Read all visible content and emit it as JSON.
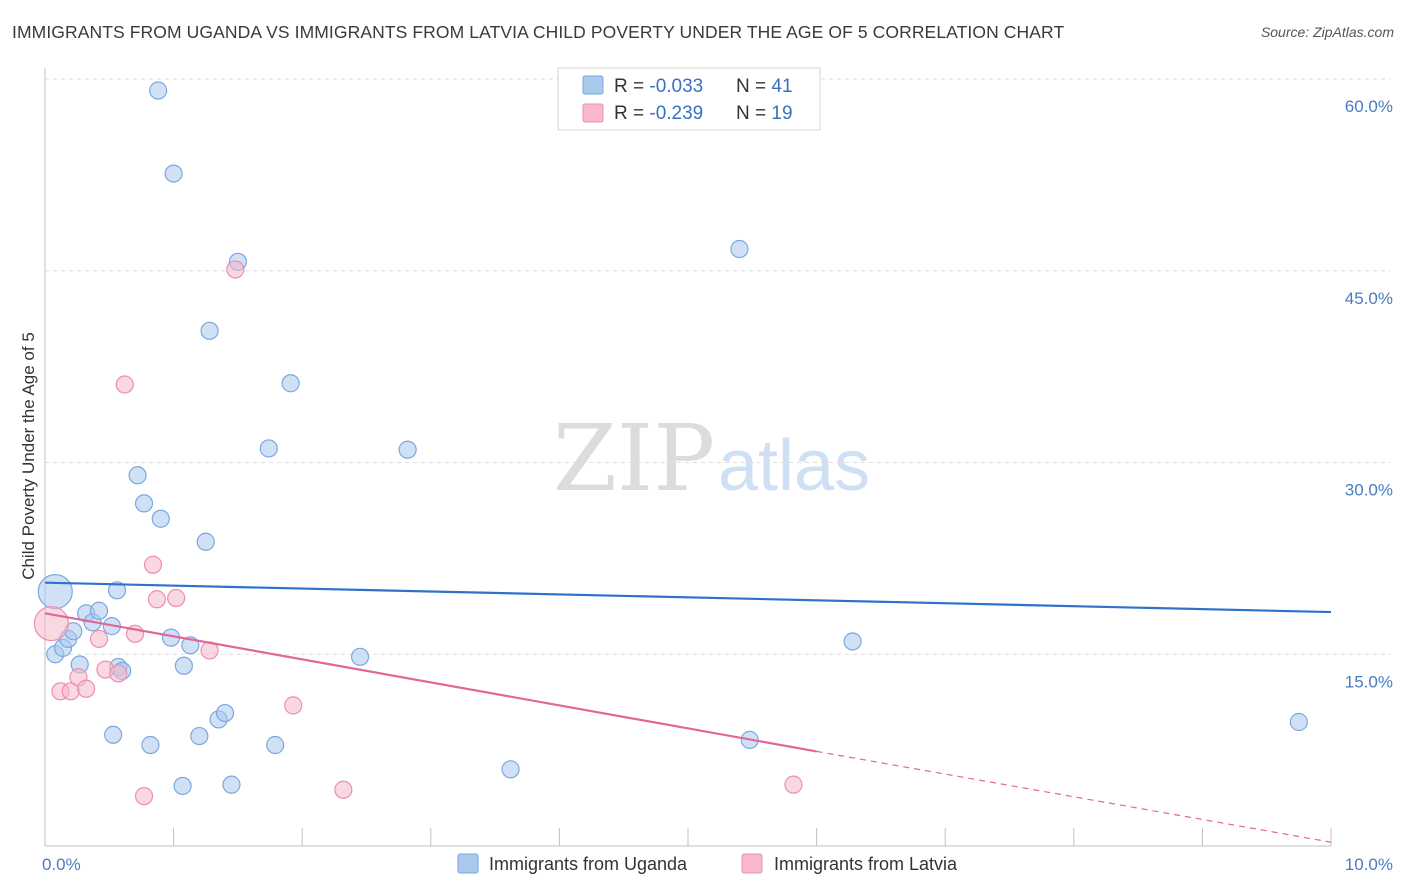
{
  "title": "IMMIGRANTS FROM UGANDA VS IMMIGRANTS FROM LATVIA CHILD POVERTY UNDER THE AGE OF 5 CORRELATION CHART",
  "source": "Source: ZipAtlas.com",
  "watermark": {
    "zip": "ZIP",
    "atlas": "atlas"
  },
  "colors": {
    "uganda_fill": "#a9c9ef",
    "uganda_stroke": "#7aa8df",
    "uganda_line": "#2f72cc",
    "latvia_fill": "#f6b8cb",
    "latvia_stroke": "#ec8fae",
    "latvia_line": "#e2669a",
    "grid": "#dedede",
    "axis_text": "#4a7cc4"
  },
  "legend": {
    "rows": [
      {
        "r_label": "R = ",
        "r_value": "-0.033",
        "n_label": "N = ",
        "n_value": "41"
      },
      {
        "r_label": "R = ",
        "r_value": "-0.239",
        "n_label": "N = ",
        "n_value": "19"
      }
    ]
  },
  "chart_data": {
    "type": "scatter",
    "title": "IMMIGRANTS FROM UGANDA VS IMMIGRANTS FROM LATVIA CHILD POVERTY UNDER THE AGE OF 5 CORRELATION CHART",
    "xlabel": "",
    "ylabel": "Child Poverty Under the Age of 5",
    "xlim": [
      0,
      10
    ],
    "ylim": [
      0,
      60
    ],
    "x_tick_labels": [
      "0.0%",
      "10.0%"
    ],
    "y_ticks": [
      15,
      30,
      45,
      60
    ],
    "y_tick_labels": [
      "15.0%",
      "30.0%",
      "45.0%",
      "60.0%"
    ],
    "grid": true,
    "legend_position": "top-center",
    "series": [
      {
        "name": "Immigrants from Uganda",
        "r": -0.033,
        "n": 41,
        "trend": {
          "x": [
            0,
            10
          ],
          "y": [
            20.6,
            18.3
          ],
          "dashed_extension": false
        },
        "points": [
          [
            0.08,
            19.9,
            "big"
          ],
          [
            0.08,
            15.0
          ],
          [
            0.14,
            15.5
          ],
          [
            0.18,
            16.2
          ],
          [
            0.22,
            16.8
          ],
          [
            0.27,
            14.2
          ],
          [
            0.32,
            18.2
          ],
          [
            0.37,
            17.5
          ],
          [
            0.42,
            18.4
          ],
          [
            0.52,
            17.2
          ],
          [
            0.57,
            14.0
          ],
          [
            0.6,
            13.7
          ],
          [
            0.53,
            8.7
          ],
          [
            0.56,
            20.0
          ],
          [
            0.72,
            29.0
          ],
          [
            0.77,
            26.8
          ],
          [
            0.82,
            7.9
          ],
          [
            0.9,
            25.6
          ],
          [
            0.88,
            59.1
          ],
          [
            0.98,
            16.3
          ],
          [
            1.0,
            52.6
          ],
          [
            1.07,
            4.7
          ],
          [
            1.08,
            14.1
          ],
          [
            1.13,
            15.7
          ],
          [
            1.2,
            8.6
          ],
          [
            1.25,
            23.8
          ],
          [
            1.28,
            40.3
          ],
          [
            1.35,
            9.9
          ],
          [
            1.4,
            10.4
          ],
          [
            1.45,
            4.8
          ],
          [
            1.5,
            45.7
          ],
          [
            1.74,
            31.1
          ],
          [
            1.79,
            7.9
          ],
          [
            1.91,
            36.2
          ],
          [
            2.45,
            14.8
          ],
          [
            2.82,
            31.0
          ],
          [
            3.62,
            6.0
          ],
          [
            5.4,
            46.7
          ],
          [
            5.48,
            8.3
          ],
          [
            6.28,
            16.0
          ],
          [
            9.75,
            9.7
          ]
        ]
      },
      {
        "name": "Immigrants from Latvia",
        "r": -0.239,
        "n": 19,
        "trend": {
          "x": [
            0,
            6.0
          ],
          "y": [
            18.2,
            7.4
          ],
          "dashed_to": [
            10,
            0.3
          ]
        },
        "points": [
          [
            0.05,
            17.4,
            "big"
          ],
          [
            0.12,
            12.1
          ],
          [
            0.2,
            12.1
          ],
          [
            0.26,
            13.2
          ],
          [
            0.32,
            12.3
          ],
          [
            0.42,
            16.2
          ],
          [
            0.47,
            13.8
          ],
          [
            0.57,
            13.5
          ],
          [
            0.62,
            36.1
          ],
          [
            0.7,
            16.6
          ],
          [
            0.77,
            3.9
          ],
          [
            0.84,
            22.0
          ],
          [
            0.87,
            19.3
          ],
          [
            1.02,
            19.4
          ],
          [
            1.28,
            15.3
          ],
          [
            1.48,
            45.1
          ],
          [
            1.93,
            11.0
          ],
          [
            2.32,
            4.4
          ],
          [
            5.82,
            4.8
          ]
        ]
      }
    ]
  }
}
